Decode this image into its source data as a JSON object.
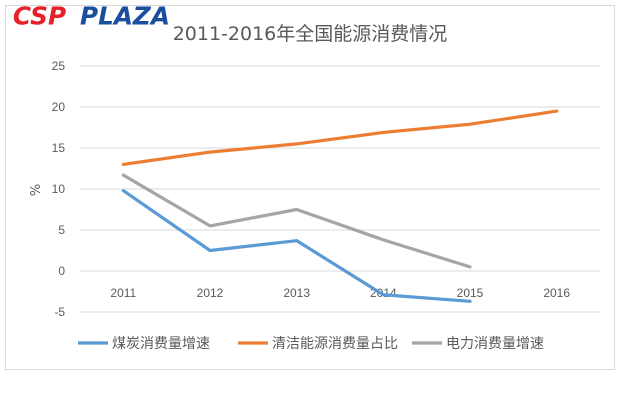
{
  "chart_data": {
    "type": "line",
    "title": "2011-2016年全国能源消费情况",
    "ylabel": "%",
    "xlabel": "",
    "categories": [
      "2011",
      "2012",
      "2013",
      "2014",
      "2015",
      "2016"
    ],
    "ylim": [
      -5,
      25
    ],
    "yticks": [
      25,
      20,
      15,
      10,
      5,
      0,
      -5
    ],
    "grid": true,
    "legend_position": "bottom",
    "series": [
      {
        "name": "煤炭消费量增速",
        "color": "#5b9bd5",
        "values": [
          9.8,
          2.5,
          3.7,
          -2.9,
          -3.7,
          null
        ]
      },
      {
        "name": "清洁能源消费量占比",
        "color": "#ed7d31",
        "values": [
          13.0,
          14.5,
          15.5,
          16.9,
          17.9,
          19.5
        ]
      },
      {
        "name": "电力消费量增速",
        "color": "#a5a5a5",
        "values": [
          11.7,
          5.5,
          7.5,
          3.8,
          0.5,
          null
        ]
      }
    ]
  },
  "watermark": {
    "text_red": "CSP",
    "text_blue": "PLAZA",
    "color_red": "#e8202a",
    "color_blue": "#1a4fa0"
  }
}
